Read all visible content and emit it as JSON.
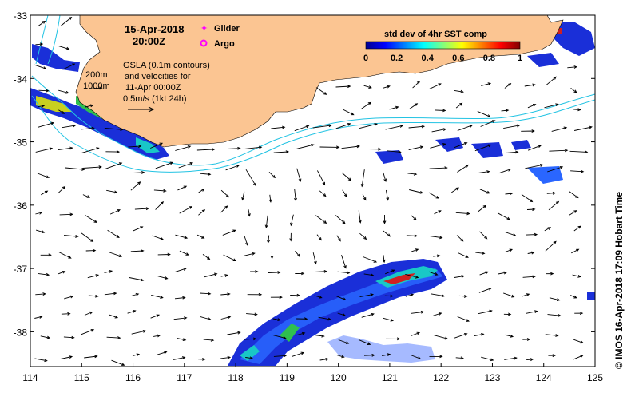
{
  "map": {
    "date_line": "15-Apr-2018",
    "time_line": "20:00Z",
    "legend": {
      "glider_label": "Glider",
      "argo_label": "Argo",
      "glider_color": "#ff00ff",
      "argo_color": "#ff00ff"
    },
    "colorbar": {
      "title": "std dev of 4hr SST comp",
      "ticks": [
        "0",
        "0.2",
        "0.4",
        "0.6",
        "0.8",
        "1"
      ],
      "range": [
        0,
        1
      ]
    },
    "notes": {
      "line1": "GSLA (0.1m contours)",
      "line2": "and velocities for",
      "line3": "11-Apr 00:00Z",
      "line4": "0.5m/s (1kt 24h)"
    },
    "isobaths": {
      "shallow": "200m",
      "deep": "1000m"
    },
    "x_ticks": [
      "114",
      "115",
      "116",
      "117",
      "118",
      "119",
      "120",
      "121",
      "122",
      "123",
      "124",
      "125"
    ],
    "y_ticks": [
      "-33",
      "-34",
      "-35",
      "-36",
      "-37",
      "-38"
    ],
    "lon_range": [
      114,
      125
    ],
    "lat_range": [
      -38.55,
      -33
    ],
    "credit": "© IMOS 16-Apr-2018 17:09 Hobart Time",
    "colors": {
      "land": "#fbc592",
      "ocean": "#ffffff",
      "contour": "#22c3e3",
      "arrow": "#000000"
    }
  }
}
